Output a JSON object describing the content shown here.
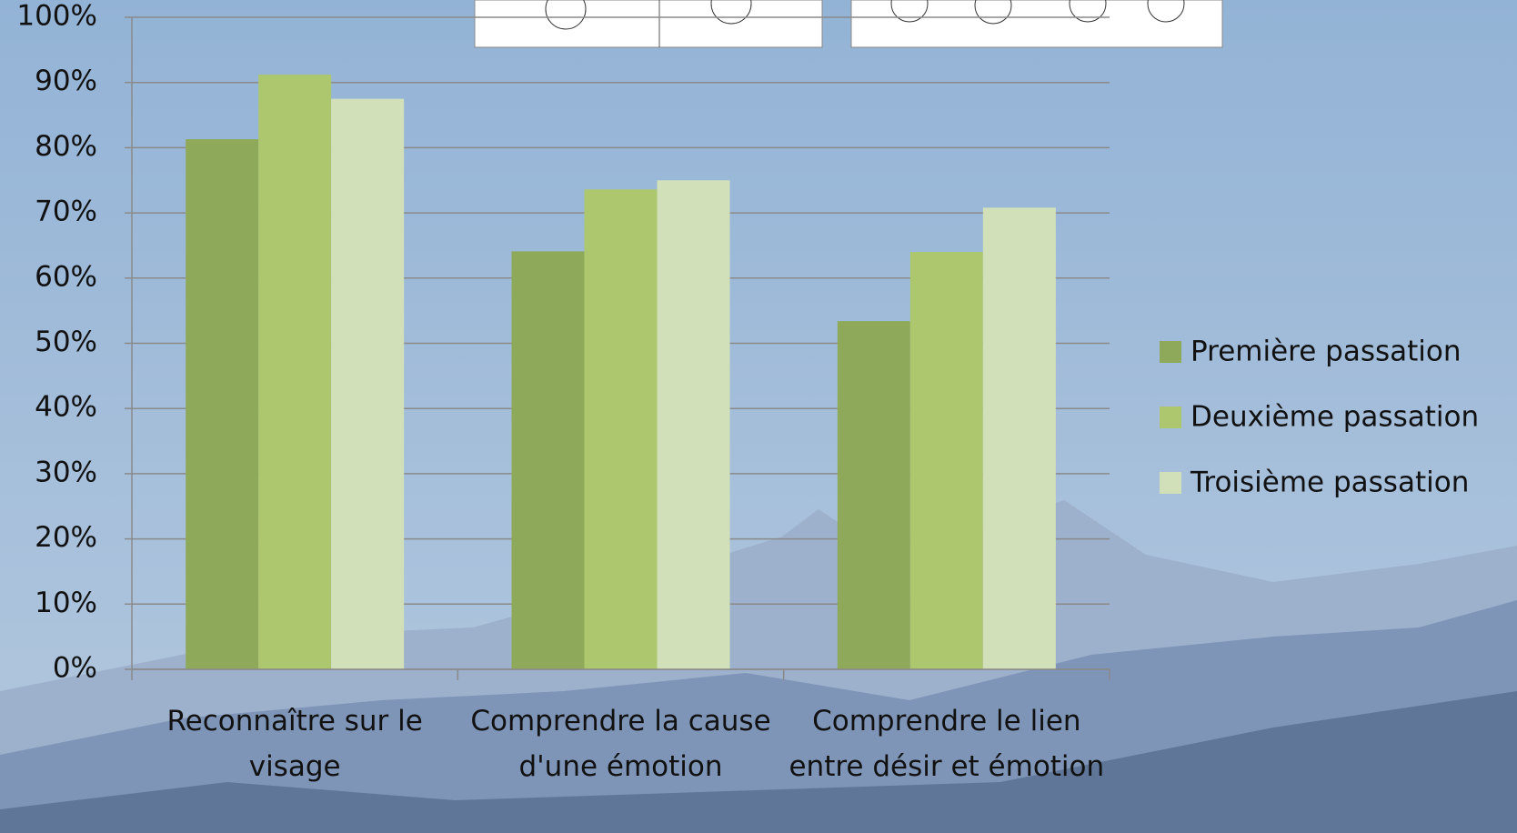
{
  "chart_data": {
    "type": "bar",
    "categories": [
      "Reconnaître sur le visage",
      "Comprendre la cause d'une émotion",
      "Comprendre le lien entre désir et émotion"
    ],
    "series": [
      {
        "name": "Première passation",
        "color": "#8fa95a",
        "values": [
          81.3,
          64.1,
          53.4
        ]
      },
      {
        "name": "Deuxième passation",
        "color": "#adc76e",
        "values": [
          91.2,
          73.6,
          64.0
        ]
      },
      {
        "name": "Troisième passation",
        "color": "#d2e0ba",
        "values": [
          87.5,
          75.0,
          70.8
        ]
      }
    ],
    "ylim": [
      0,
      100
    ],
    "yticks": [
      {
        "value": 0,
        "label": "0%"
      },
      {
        "value": 10,
        "label": "10%"
      },
      {
        "value": 20,
        "label": "20%"
      },
      {
        "value": 30,
        "label": "30%"
      },
      {
        "value": 40,
        "label": "40%"
      },
      {
        "value": 50,
        "label": "50%"
      },
      {
        "value": 60,
        "label": "60%"
      },
      {
        "value": 70,
        "label": "70%"
      },
      {
        "value": 80,
        "label": "80%"
      },
      {
        "value": 90,
        "label": "90%"
      },
      {
        "value": 100,
        "label": "100%"
      }
    ],
    "grid": true,
    "legend": "right"
  }
}
